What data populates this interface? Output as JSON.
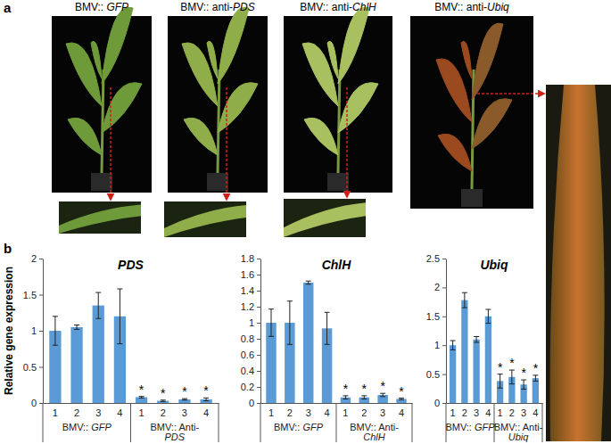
{
  "figure": {
    "panel_labels": [
      "a",
      "b"
    ],
    "photo_labels": [
      "BMV:: GFP",
      "BMV:: anti-PDS",
      "BMV:: anti-ChlH",
      "BMV:: anti-Ubiq"
    ]
  },
  "chart_data": [
    {
      "type": "bar",
      "title": "PDS",
      "y_label": "Relative gene expression",
      "categories": [
        "1",
        "2",
        "3",
        "4",
        "1",
        "2",
        "3",
        "4"
      ],
      "groups": [
        "BMV:: GFP",
        "BMV:: Anti-PDS"
      ],
      "values": [
        1.0,
        1.05,
        1.35,
        1.2,
        0.08,
        0.03,
        0.05,
        0.05
      ],
      "errors": [
        0.2,
        0.03,
        0.18,
        0.38,
        0.01,
        0.01,
        0.01,
        0.02
      ],
      "significance_labels": [
        null,
        null,
        null,
        null,
        "*",
        "*",
        "*",
        "*"
      ],
      "color": "#5b9bd5",
      "ylim": [
        0,
        2
      ],
      "yticks": [
        0,
        0.5,
        1,
        1.5,
        2
      ],
      "grid": false
    },
    {
      "type": "bar",
      "title": "ChlH",
      "categories": [
        "1",
        "2",
        "3",
        "4",
        "1",
        "2",
        "3",
        "4"
      ],
      "groups": [
        "BMV:: GFP",
        "BMV:: Anti-ChlH"
      ],
      "values": [
        1.0,
        1.0,
        1.5,
        0.93,
        0.07,
        0.07,
        0.1,
        0.05
      ],
      "errors": [
        0.17,
        0.27,
        0.02,
        0.2,
        0.02,
        0.02,
        0.02,
        0.01
      ],
      "significance_labels": [
        null,
        null,
        null,
        null,
        "*",
        "*",
        "*",
        "*"
      ],
      "color": "#5b9bd5",
      "ylim": [
        0,
        1.8
      ],
      "yticks": [
        0,
        0.2,
        0.4,
        0.6,
        0.8,
        1,
        1.2,
        1.4,
        1.6,
        1.8
      ],
      "grid": false
    },
    {
      "type": "bar",
      "title": "Ubiq",
      "categories": [
        "1",
        "2",
        "3",
        "4",
        "1",
        "2",
        "3",
        "4"
      ],
      "groups": [
        "BMV:: GFP",
        "BMV:: Anti-Ubiq"
      ],
      "values": [
        1.0,
        1.78,
        1.1,
        1.5,
        0.38,
        0.45,
        0.32,
        0.43
      ],
      "errors": [
        0.08,
        0.13,
        0.05,
        0.12,
        0.12,
        0.12,
        0.08,
        0.05
      ],
      "significance_labels": [
        null,
        null,
        null,
        null,
        "*",
        "*",
        "*",
        "*"
      ],
      "color": "#5b9bd5",
      "ylim": [
        0,
        2.5
      ],
      "yticks": [
        0,
        0.5,
        1,
        1.5,
        2,
        2.5
      ],
      "grid": false
    }
  ]
}
